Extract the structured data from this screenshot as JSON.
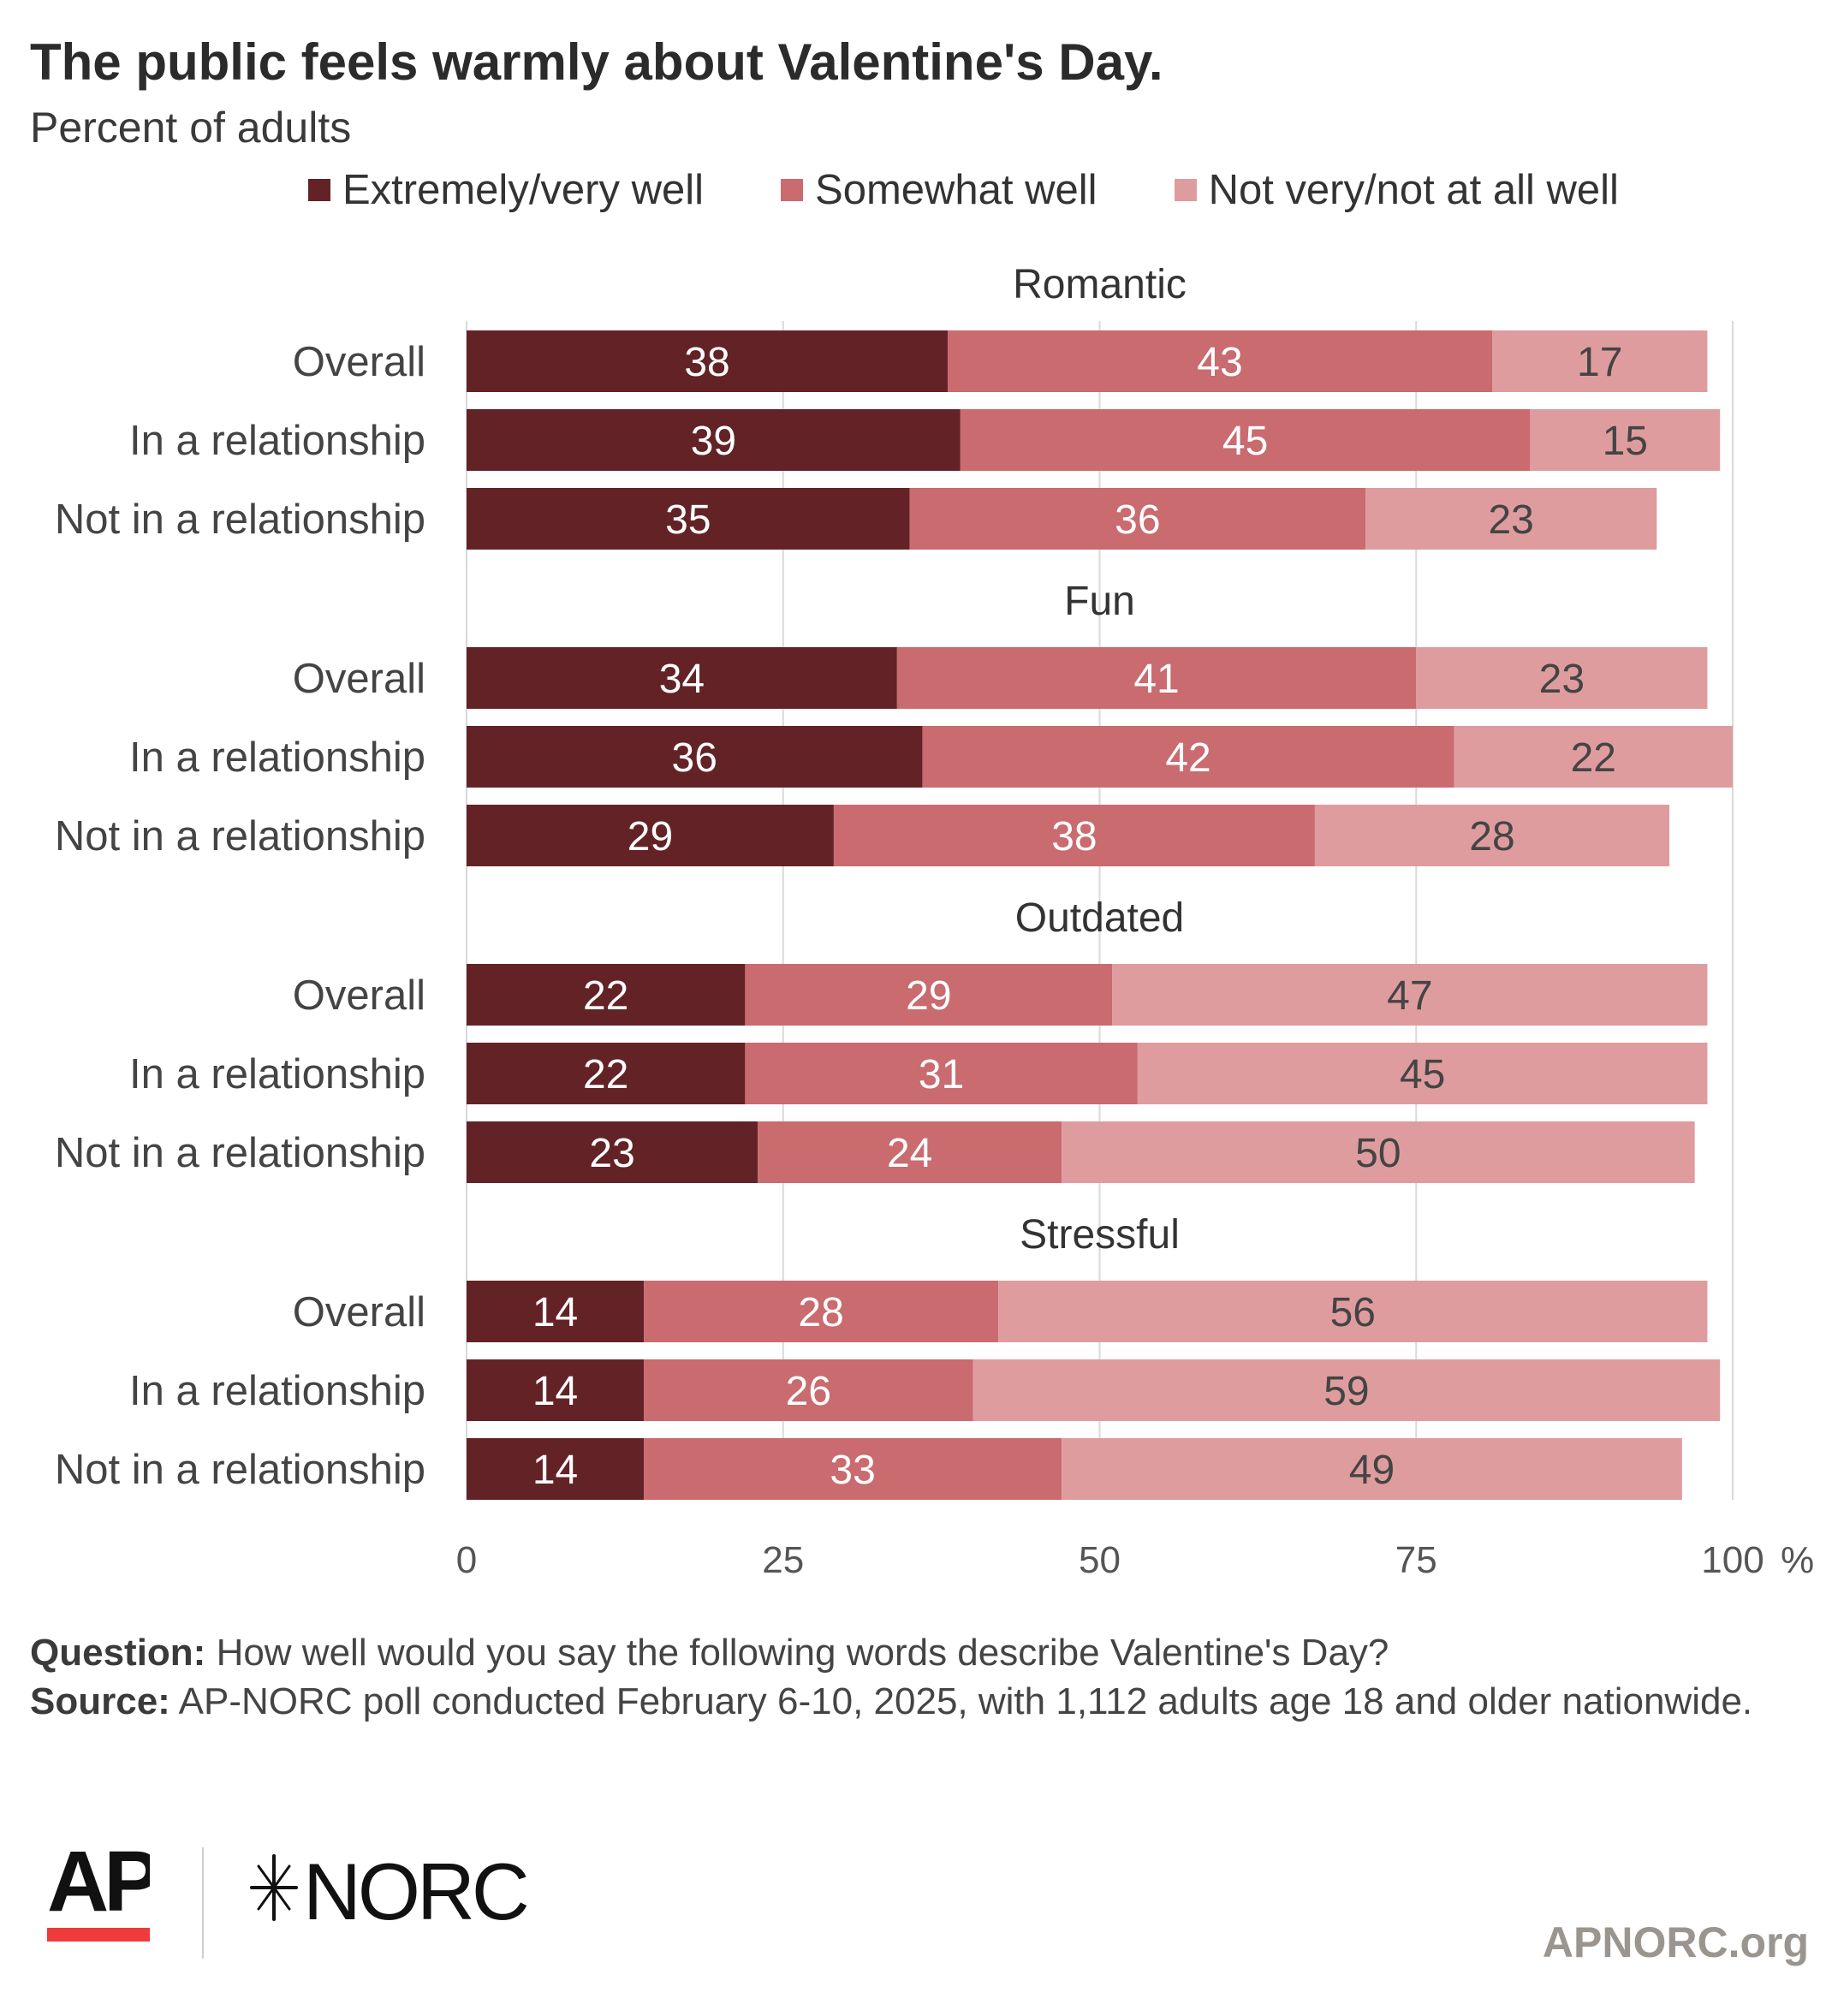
{
  "title": "The public feels warmly about Valentine's Day.",
  "subtitle": "Percent of adults",
  "notes": {
    "question_label": "Question:",
    "question_text": "How well would you say the following words describe Valentine's Day?",
    "source_label": "Source:",
    "source_text": "AP-NORC poll conducted February 6-10, 2025, with 1,112 adults age 18 and older nationwide."
  },
  "branding": {
    "ap_logo_text": "AP",
    "norc_logo_text": "NORC",
    "website": "APNORC.org"
  },
  "colors": {
    "extremely_very_well": "#632326",
    "somewhat_well": "#c96b6f",
    "not_very_well": "#df9c9e",
    "ap_red": "#ef3b3b",
    "gridline": "#d9d9d9"
  },
  "chart_data": {
    "type": "bar",
    "orientation": "horizontal",
    "stacked": true,
    "xlim": [
      0,
      100
    ],
    "ticks": [
      0,
      25,
      50,
      75,
      100
    ],
    "tick_labels": [
      "0",
      "25",
      "50",
      "75",
      "100"
    ],
    "axis_unit": "%",
    "grid": true,
    "legend_position": "top",
    "series_names": [
      "Extremely/very well",
      "Somewhat well",
      "Not very/not at all well"
    ],
    "groups": [
      {
        "name": "Romantic",
        "rows": [
          {
            "label": "Overall",
            "values": [
              38,
              43,
              17
            ]
          },
          {
            "label": "In a relationship",
            "values": [
              39,
              45,
              15
            ]
          },
          {
            "label": "Not in a relationship",
            "values": [
              35,
              36,
              23
            ]
          }
        ]
      },
      {
        "name": "Fun",
        "rows": [
          {
            "label": "Overall",
            "values": [
              34,
              41,
              23
            ]
          },
          {
            "label": "In a relationship",
            "values": [
              36,
              42,
              22
            ]
          },
          {
            "label": "Not in a relationship",
            "values": [
              29,
              38,
              28
            ]
          }
        ]
      },
      {
        "name": "Outdated",
        "rows": [
          {
            "label": "Overall",
            "values": [
              22,
              29,
              47
            ]
          },
          {
            "label": "In a relationship",
            "values": [
              22,
              31,
              45
            ]
          },
          {
            "label": "Not in a relationship",
            "values": [
              23,
              24,
              50
            ]
          }
        ]
      },
      {
        "name": "Stressful",
        "rows": [
          {
            "label": "Overall",
            "values": [
              14,
              28,
              56
            ]
          },
          {
            "label": "In a relationship",
            "values": [
              14,
              26,
              59
            ]
          },
          {
            "label": "Not in a relationship",
            "values": [
              14,
              33,
              49
            ]
          }
        ]
      }
    ]
  }
}
